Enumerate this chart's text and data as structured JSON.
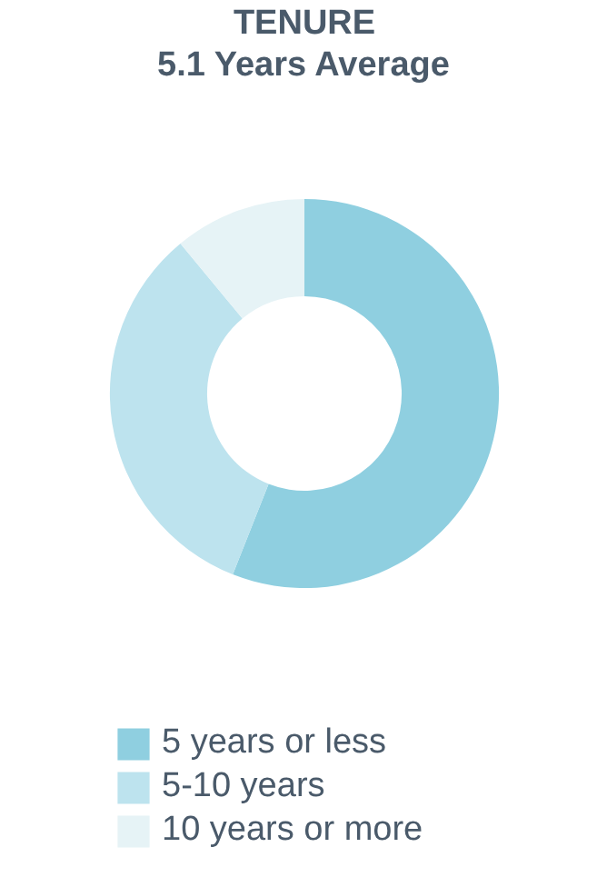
{
  "chart_data": {
    "type": "donut",
    "title": "TENURE",
    "subtitle": "5.1 Years Average",
    "categories": [
      "5 years or less",
      "5-10 years",
      "10 years or more"
    ],
    "values": [
      56,
      33,
      11
    ],
    "colors": [
      "#8fcfe0",
      "#bde3ee",
      "#e6f3f6"
    ],
    "legend": "bottom"
  }
}
